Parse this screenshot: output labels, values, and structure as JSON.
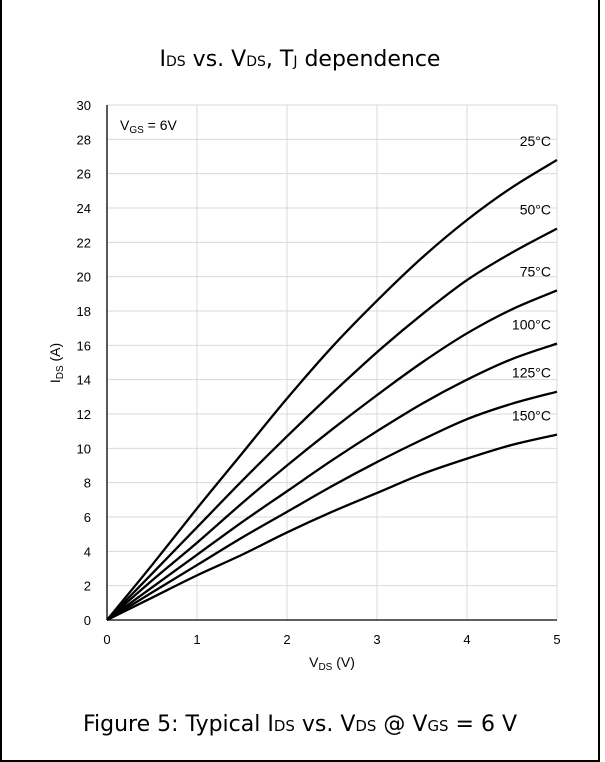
{
  "chart_data": {
    "type": "line",
    "title": {
      "main": "I",
      "sub1": "DS",
      "mid": " vs. V",
      "sub2": "DS",
      "mid2": ", T",
      "sub3": "J",
      "end": " dependence"
    },
    "xlabel": {
      "main": "V",
      "sub": "DS",
      "unit": " (V)"
    },
    "ylabel": {
      "main": "I",
      "sub": "DS",
      "unit": " (A)"
    },
    "xlim": [
      0,
      5
    ],
    "ylim": [
      0,
      30
    ],
    "x_ticks": [
      "0",
      "1",
      "2",
      "3",
      "4",
      "5"
    ],
    "y_ticks": [
      "0",
      "2",
      "4",
      "6",
      "8",
      "10",
      "12",
      "14",
      "16",
      "18",
      "20",
      "22",
      "24",
      "26",
      "28",
      "30"
    ],
    "grid": true,
    "annotation": {
      "main": "V",
      "sub": "GS",
      "rest": " = 6V"
    },
    "series": [
      {
        "name": "25°C",
        "x": [
          0,
          0.5,
          1,
          1.5,
          2,
          2.5,
          3,
          3.5,
          4,
          4.5,
          5
        ],
        "values": [
          0,
          3.2,
          6.5,
          9.7,
          12.9,
          15.9,
          18.6,
          21.1,
          23.3,
          25.2,
          26.8
        ]
      },
      {
        "name": "50°C",
        "x": [
          0,
          0.5,
          1,
          1.5,
          2,
          2.5,
          3,
          3.5,
          4,
          4.5,
          5
        ],
        "values": [
          0,
          2.7,
          5.4,
          8.1,
          10.7,
          13.2,
          15.6,
          17.8,
          19.8,
          21.4,
          22.8
        ]
      },
      {
        "name": "75°C",
        "x": [
          0,
          0.5,
          1,
          1.5,
          2,
          2.5,
          3,
          3.5,
          4,
          4.5,
          5
        ],
        "values": [
          0,
          2.3,
          4.5,
          6.8,
          9.0,
          11.1,
          13.1,
          15.0,
          16.7,
          18.1,
          19.2
        ]
      },
      {
        "name": "100°C",
        "x": [
          0,
          0.5,
          1,
          1.5,
          2,
          2.5,
          3,
          3.5,
          4,
          4.5,
          5
        ],
        "values": [
          0,
          1.9,
          3.8,
          5.7,
          7.5,
          9.3,
          11.0,
          12.6,
          14.0,
          15.2,
          16.1
        ]
      },
      {
        "name": "125°C",
        "x": [
          0,
          0.5,
          1,
          1.5,
          2,
          2.5,
          3,
          3.5,
          4,
          4.5,
          5
        ],
        "values": [
          0,
          1.6,
          3.2,
          4.8,
          6.3,
          7.8,
          9.2,
          10.5,
          11.7,
          12.6,
          13.3
        ]
      },
      {
        "name": "150°C",
        "x": [
          0,
          0.5,
          1,
          1.5,
          2,
          2.5,
          3,
          3.5,
          4,
          4.5,
          5
        ],
        "values": [
          0,
          1.3,
          2.6,
          3.8,
          5.1,
          6.3,
          7.4,
          8.5,
          9.4,
          10.2,
          10.8
        ]
      }
    ],
    "series_label_positions": [
      "right-end",
      "right-end",
      "right-end",
      "right-end",
      "right-end",
      "right-end"
    ]
  },
  "caption": {
    "prefix": "Figure 5: Typical I",
    "sub1": "DS",
    "mid": " vs. V",
    "sub2": "DS",
    "mid2": " @ V",
    "sub3": "GS",
    "end": " = 6 V"
  },
  "colors": {
    "line": "#000000",
    "grid": "#d9d9d9",
    "axis": "#000000",
    "background": "#ffffff"
  }
}
